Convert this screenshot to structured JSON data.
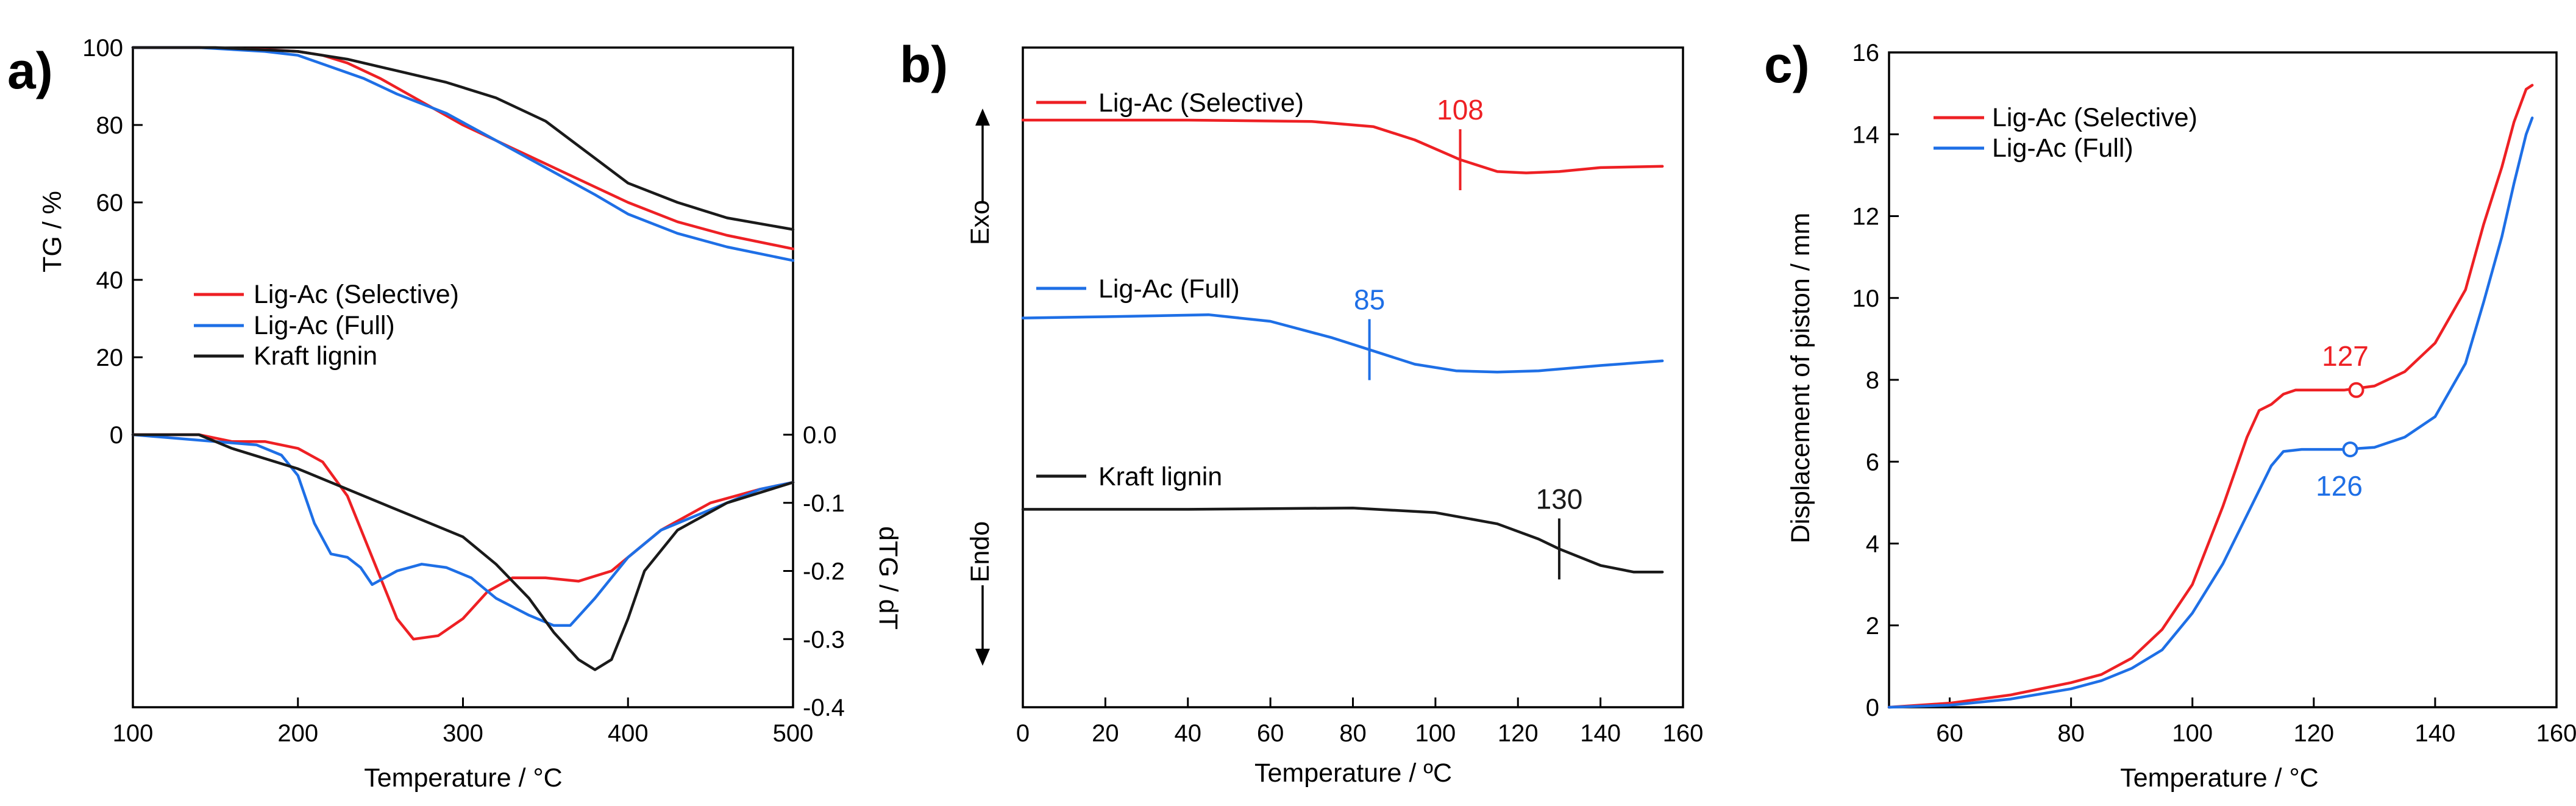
{
  "colors": {
    "selective": "#ee2024",
    "full": "#1e6fe6",
    "kraft": "#1a1a1a"
  },
  "chart_data": [
    {
      "panel": "a)",
      "type": "line",
      "xlabel": "Temperature / °C",
      "ylabel_left": "TG / %",
      "ylabel_right": "dTG / dT",
      "xlim": [
        100,
        500
      ],
      "xticks": [
        100,
        200,
        300,
        400,
        500
      ],
      "tg_ylim": [
        0,
        100
      ],
      "tg_yticks": [
        0,
        20,
        40,
        60,
        80,
        100
      ],
      "dtg_ylim": [
        -0.4,
        0.0
      ],
      "dtg_yticks": [
        "0.0",
        "-0.1",
        "-0.2",
        "-0.3",
        "-0.4"
      ],
      "legend": [
        "Lig-Ac (Selective)",
        "Lig-Ac (Full)",
        "Kraft lignin"
      ],
      "series_tg": [
        {
          "name": "Lig-Ac (Selective)",
          "color": "selective",
          "x": [
            100,
            140,
            180,
            200,
            215,
            230,
            250,
            275,
            300,
            330,
            350,
            380,
            400,
            430,
            460,
            500
          ],
          "y": [
            100,
            100,
            99.5,
            99,
            98,
            96,
            92,
            86,
            80,
            74,
            70,
            64,
            60,
            55,
            51.5,
            48
          ]
        },
        {
          "name": "Lig-Ac (Full)",
          "color": "full",
          "x": [
            100,
            140,
            180,
            200,
            220,
            240,
            260,
            290,
            320,
            350,
            380,
            400,
            430,
            460,
            500
          ],
          "y": [
            100,
            100,
            99,
            98,
            95,
            92,
            88,
            83,
            76,
            69,
            62,
            57,
            52,
            48.5,
            45
          ]
        },
        {
          "name": "Kraft lignin",
          "color": "kraft",
          "x": [
            100,
            150,
            200,
            230,
            260,
            290,
            320,
            350,
            375,
            400,
            430,
            460,
            500
          ],
          "y": [
            100,
            100,
            99,
            97,
            94,
            91,
            87,
            81,
            73,
            65,
            60,
            56,
            53
          ]
        }
      ],
      "series_dtg": [
        {
          "name": "Lig-Ac (Selective)",
          "color": "selective",
          "x": [
            100,
            140,
            160,
            180,
            200,
            215,
            230,
            245,
            260,
            270,
            285,
            300,
            315,
            330,
            350,
            370,
            390,
            400,
            420,
            450,
            480,
            500
          ],
          "y": [
            0,
            0,
            -0.01,
            -0.01,
            -0.02,
            -0.04,
            -0.09,
            -0.18,
            -0.27,
            -0.3,
            -0.295,
            -0.27,
            -0.23,
            -0.21,
            -0.21,
            -0.215,
            -0.2,
            -0.18,
            -0.14,
            -0.1,
            -0.08,
            -0.07
          ]
        },
        {
          "name": "Lig-Ac (Full)",
          "color": "full",
          "x": [
            100,
            150,
            175,
            190,
            200,
            210,
            220,
            230,
            238,
            245,
            260,
            275,
            290,
            305,
            320,
            340,
            355,
            365,
            380,
            400,
            420,
            450,
            480,
            500
          ],
          "y": [
            0,
            -0.01,
            -0.015,
            -0.03,
            -0.06,
            -0.13,
            -0.175,
            -0.18,
            -0.195,
            -0.22,
            -0.2,
            -0.19,
            -0.195,
            -0.21,
            -0.24,
            -0.265,
            -0.28,
            -0.28,
            -0.24,
            -0.18,
            -0.14,
            -0.11,
            -0.08,
            -0.07
          ]
        },
        {
          "name": "Kraft lignin",
          "color": "kraft",
          "x": [
            100,
            140,
            160,
            200,
            240,
            270,
            300,
            320,
            340,
            355,
            370,
            380,
            390,
            400,
            410,
            430,
            460,
            500
          ],
          "y": [
            0,
            0,
            -0.02,
            -0.05,
            -0.09,
            -0.12,
            -0.15,
            -0.19,
            -0.24,
            -0.29,
            -0.33,
            -0.345,
            -0.33,
            -0.27,
            -0.2,
            -0.14,
            -0.1,
            -0.07
          ]
        }
      ]
    },
    {
      "panel": "b)",
      "type": "line",
      "xlabel": "Temperature / ºC",
      "xlim": [
        0,
        160
      ],
      "xticks": [
        0,
        20,
        40,
        60,
        80,
        100,
        120,
        140,
        160
      ],
      "exo_label": "Exo",
      "endo_label": "Endo",
      "series": [
        {
          "name": "Lig-Ac (Selective)",
          "color": "selective",
          "annotation": "108",
          "annotation_x": 106,
          "x": [
            0,
            40,
            70,
            85,
            95,
            106,
            115,
            122,
            130,
            140,
            155
          ],
          "y": [
            8.9,
            8.9,
            8.88,
            8.8,
            8.6,
            8.3,
            8.12,
            8.1,
            8.12,
            8.18,
            8.2
          ]
        },
        {
          "name": "Lig-Ac (Full)",
          "color": "full",
          "annotation": "85",
          "annotation_x": 84,
          "x": [
            0,
            20,
            45,
            60,
            75,
            85,
            95,
            105,
            115,
            125,
            140,
            155
          ],
          "y": [
            5.9,
            5.92,
            5.95,
            5.85,
            5.6,
            5.4,
            5.2,
            5.1,
            5.08,
            5.1,
            5.18,
            5.25
          ]
        },
        {
          "name": "Kraft lignin",
          "color": "kraft",
          "annotation": "130",
          "annotation_x": 130,
          "x": [
            0,
            40,
            80,
            100,
            115,
            125,
            130,
            140,
            148,
            155
          ],
          "y": [
            3.0,
            3.0,
            3.02,
            2.95,
            2.78,
            2.55,
            2.4,
            2.15,
            2.05,
            2.05
          ]
        }
      ]
    },
    {
      "panel": "c)",
      "type": "line",
      "xlabel": "Temperature / °C",
      "ylabel": "Displacement of piston / mm",
      "xlim": [
        50,
        160
      ],
      "xticks": [
        60,
        80,
        100,
        120,
        140,
        160
      ],
      "ylim": [
        0,
        16
      ],
      "yticks": [
        0,
        2,
        4,
        6,
        8,
        10,
        12,
        14,
        16
      ],
      "legend": [
        "Lig-Ac (Selective)",
        "Lig-Ac (Full)"
      ],
      "series": [
        {
          "name": "Lig-Ac (Selective)",
          "color": "selective",
          "marker": {
            "x": 127,
            "y": 7.75,
            "label": "127"
          },
          "x": [
            50,
            60,
            70,
            80,
            85,
            90,
            95,
            100,
            105,
            109,
            111,
            113,
            115,
            117,
            120,
            125,
            130,
            135,
            140,
            145,
            148,
            151,
            153,
            155,
            156
          ],
          "y": [
            0,
            0.1,
            0.3,
            0.6,
            0.8,
            1.2,
            1.9,
            3.0,
            4.9,
            6.6,
            7.25,
            7.4,
            7.65,
            7.75,
            7.75,
            7.75,
            7.85,
            8.2,
            8.9,
            10.2,
            11.8,
            13.2,
            14.3,
            15.1,
            15.2
          ]
        },
        {
          "name": "Lig-Ac (Full)",
          "color": "full",
          "marker": {
            "x": 126,
            "y": 6.3,
            "label": "126"
          },
          "x": [
            50,
            60,
            70,
            80,
            85,
            90,
            95,
            100,
            105,
            110,
            113,
            115,
            118,
            120,
            125,
            130,
            135,
            140,
            145,
            148,
            151,
            153,
            155,
            156
          ],
          "y": [
            0,
            0.05,
            0.2,
            0.45,
            0.65,
            0.95,
            1.4,
            2.3,
            3.5,
            5.0,
            5.9,
            6.25,
            6.3,
            6.3,
            6.3,
            6.35,
            6.6,
            7.1,
            8.4,
            9.9,
            11.5,
            12.8,
            14.0,
            14.4
          ]
        }
      ]
    }
  ]
}
